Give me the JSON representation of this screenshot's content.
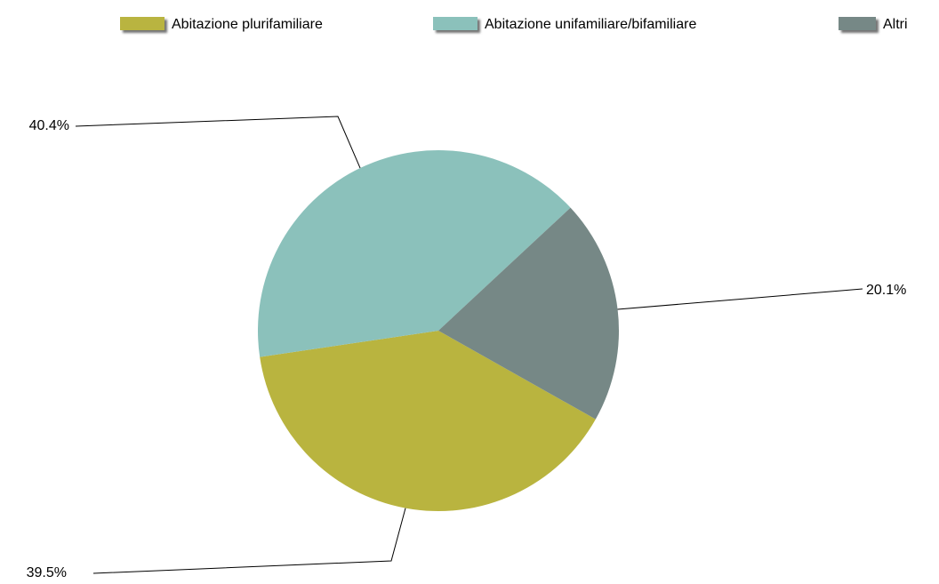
{
  "chart_data": {
    "type": "pie",
    "categories": [
      "Abitazione plurifamiliare",
      "Abitazione unifamiliare/bifamiliare",
      "Altri"
    ],
    "values": [
      39.5,
      40.4,
      20.1
    ],
    "value_labels": [
      "39.5%",
      "40.4%",
      "20.1%"
    ],
    "colors": [
      "#b9b43f",
      "#8bc1bb",
      "#768886"
    ],
    "legend": "top"
  }
}
